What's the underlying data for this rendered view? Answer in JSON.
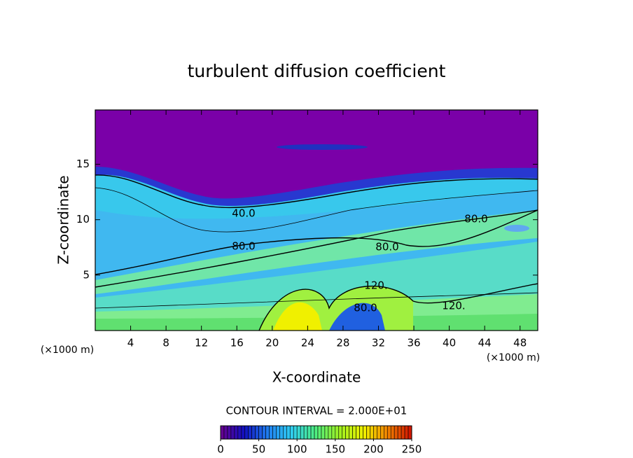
{
  "chart_data": {
    "type": "contour",
    "title": "turbulent diffusion coefficient",
    "x_label": "X-coordinate",
    "y_label": "Z-coordinate",
    "x_unit": "(×1000 m)",
    "y_unit": "(×1000 m)",
    "xlim": [
      0,
      50
    ],
    "ylim": [
      0,
      19.9
    ],
    "xticks": [
      4,
      8,
      12,
      16,
      20,
      24,
      28,
      32,
      36,
      40,
      44,
      48
    ],
    "yticks": [
      5,
      10,
      15
    ],
    "contour_labels": [
      "40.0",
      "80.0",
      "80.0",
      "80.0",
      "120.",
      "120.",
      "80.0"
    ],
    "contour_interval": "CONTOUR INTERVAL = 2.000E+01",
    "colorbar": {
      "lim": [
        0,
        250
      ],
      "ticks": [
        0,
        50,
        100,
        150,
        200,
        250
      ],
      "colors": [
        "#6a0090",
        "#1010c0",
        "#2080f0",
        "#30d0f0",
        "#50f080",
        "#a0f020",
        "#f0f000",
        "#f08000",
        "#d01000"
      ]
    }
  }
}
